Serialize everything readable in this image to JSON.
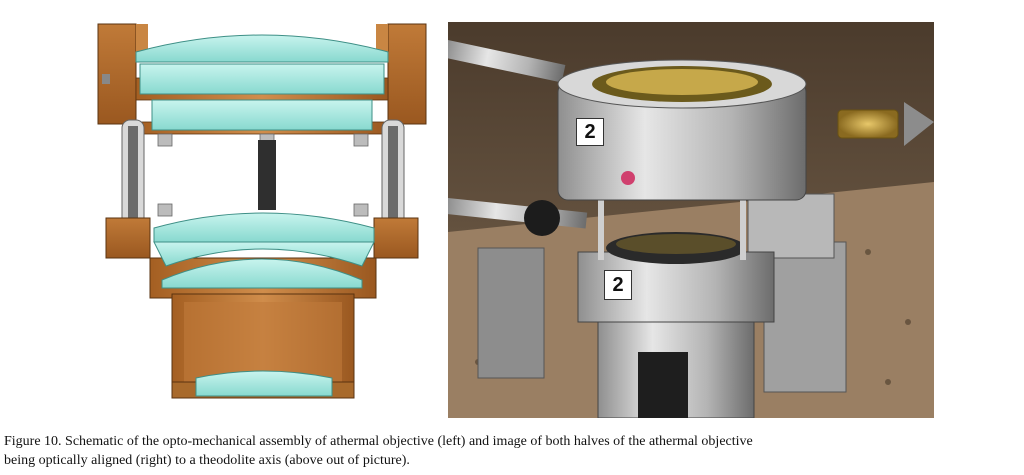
{
  "figure": {
    "caption_line1": "Figure 10. Schematic of the opto-mechanical assembly of athermal objective (left) and image of both halves of the athermal objective",
    "caption_line2": "being optically aligned (right) to a theodolite axis (above out of picture).",
    "photo_labels": [
      "2",
      "2"
    ]
  },
  "colors": {
    "bronze": "#b5712f",
    "lens": "#9fe3dc",
    "metal": "#c9c9c7",
    "table": "#8a7056"
  }
}
